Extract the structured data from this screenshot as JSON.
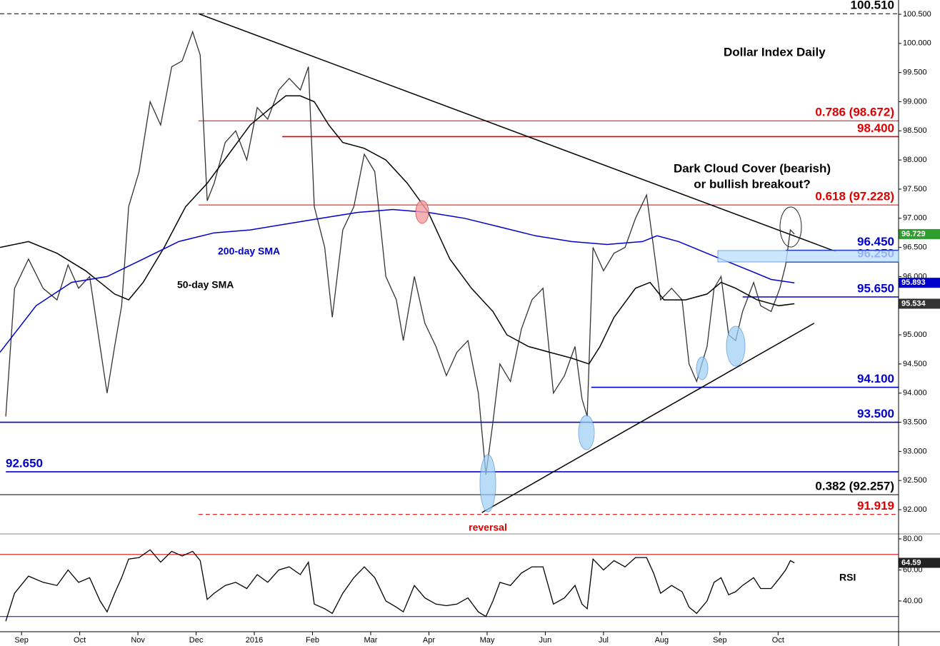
{
  "chart_data": [
    {
      "type": "line",
      "title": "Dollar Index Daily",
      "annotations": [
        "Dark Cloud Cover (bearish)",
        "or bullish breakout?",
        "reversal"
      ],
      "xlim": [
        -0.37,
        15.07
      ],
      "xticks": [
        {
          "value": 0,
          "label": "Sep"
        },
        {
          "value": 1,
          "label": "Oct"
        },
        {
          "value": 2,
          "label": "Nov"
        },
        {
          "value": 3,
          "label": "Dec"
        },
        {
          "value": 4,
          "label": "2016"
        },
        {
          "value": 5,
          "label": "Feb"
        },
        {
          "value": 6,
          "label": "Mar"
        },
        {
          "value": 7,
          "label": "Apr"
        },
        {
          "value": 8,
          "label": "May"
        },
        {
          "value": 9,
          "label": "Jun"
        },
        {
          "value": 10,
          "label": "Jul"
        },
        {
          "value": 11,
          "label": "Aug"
        },
        {
          "value": 12,
          "label": "Sep"
        },
        {
          "value": 13,
          "label": "Oct"
        }
      ],
      "ylim": [
        91.584,
        100.745
      ],
      "yticks": [
        {
          "value": 92,
          "label": "92.000"
        },
        {
          "value": 92.5,
          "label": "92.500"
        },
        {
          "value": 93,
          "label": "93.000"
        },
        {
          "value": 93.5,
          "label": "93.500"
        },
        {
          "value": 94,
          "label": "94.000"
        },
        {
          "value": 94.5,
          "label": "94.500"
        },
        {
          "value": 95,
          "label": "95.000"
        },
        {
          "value": 95.5,
          "label": "95.500"
        },
        {
          "value": 96,
          "label": "96.000"
        },
        {
          "value": 96.5,
          "label": "96.500"
        },
        {
          "value": 97,
          "label": "97.000"
        },
        {
          "value": 97.5,
          "label": "97.500"
        },
        {
          "value": 98,
          "label": "98.000"
        },
        {
          "value": 98.5,
          "label": "98.500"
        },
        {
          "value": 99,
          "label": "99.000"
        },
        {
          "value": 99.5,
          "label": "99.500"
        },
        {
          "value": 100,
          "label": "100.000"
        },
        {
          "value": 100.5,
          "label": "100.500"
        }
      ],
      "series": [
        {
          "color": "#333333",
          "x": [
            -0.27,
            -0.12,
            0.12,
            0.37,
            0.61,
            0.8,
            0.98,
            1.17,
            1.35,
            1.47,
            1.6,
            1.72,
            1.84,
            2.02,
            2.21,
            2.39,
            2.58,
            2.76,
            2.94,
            3.07,
            3.19,
            3.31,
            3.5,
            3.68,
            3.87,
            4.05,
            4.23,
            4.42,
            4.6,
            4.79,
            4.93,
            5.03,
            5.21,
            5.34,
            5.52,
            5.71,
            5.89,
            6.07,
            6.26,
            6.44,
            6.56,
            6.75,
            6.93,
            7.12,
            7.3,
            7.48,
            7.67,
            7.85,
            7.98,
            8.1,
            8.22,
            8.4,
            8.59,
            8.77,
            8.96,
            9.14,
            9.33,
            9.51,
            9.63,
            9.72,
            9.82,
            10.0,
            10.18,
            10.37,
            10.55,
            10.74,
            10.86,
            10.98,
            11.17,
            11.35,
            11.47,
            11.6,
            11.78,
            11.9,
            12.02,
            12.15,
            12.27,
            12.39,
            12.58,
            12.7,
            12.88,
            13.03,
            13.13,
            13.21,
            13.28
          ],
          "values": [
            93.6,
            95.8,
            96.3,
            95.8,
            95.6,
            96.2,
            95.8,
            96.0,
            94.8,
            94.0,
            94.8,
            95.5,
            97.2,
            97.8,
            99.0,
            98.6,
            99.6,
            99.7,
            100.2,
            99.8,
            97.3,
            97.6,
            98.3,
            98.5,
            98.0,
            98.9,
            98.7,
            99.2,
            99.4,
            99.2,
            99.6,
            97.2,
            96.5,
            95.3,
            96.8,
            97.2,
            98.1,
            97.8,
            96.0,
            95.6,
            94.9,
            96.0,
            95.2,
            94.8,
            94.3,
            94.7,
            94.9,
            94.0,
            92.6,
            93.5,
            94.5,
            94.2,
            95.1,
            95.6,
            95.8,
            94.0,
            94.3,
            94.8,
            93.9,
            93.6,
            96.5,
            96.1,
            96.4,
            96.5,
            97.0,
            97.4,
            96.5,
            95.6,
            95.8,
            95.6,
            94.5,
            94.2,
            94.8,
            95.8,
            96.0,
            95.0,
            94.9,
            95.4,
            95.9,
            95.5,
            95.4,
            95.8,
            96.2,
            96.8,
            96.729
          ]
        },
        {
          "name": "50-day SMA",
          "color": "#000000",
          "x": [
            -0.37,
            0.12,
            0.61,
            1.1,
            1.6,
            1.84,
            2.09,
            2.45,
            2.82,
            3.19,
            3.56,
            3.93,
            4.29,
            4.54,
            4.79,
            5.03,
            5.28,
            5.52,
            5.89,
            6.26,
            6.63,
            6.99,
            7.36,
            7.73,
            8.1,
            8.34,
            8.71,
            9.08,
            9.45,
            9.75,
            9.94,
            10.18,
            10.55,
            10.8,
            11.04,
            11.41,
            11.78,
            12.02,
            12.27,
            12.64,
            13.01,
            13.28
          ],
          "values": [
            96.5,
            96.6,
            96.4,
            96.1,
            95.7,
            95.6,
            95.9,
            96.5,
            97.2,
            97.6,
            98.1,
            98.6,
            98.9,
            99.1,
            99.1,
            99.0,
            98.6,
            98.3,
            98.2,
            98.0,
            97.6,
            97.1,
            96.3,
            95.8,
            95.4,
            95.0,
            94.8,
            94.7,
            94.6,
            94.5,
            94.8,
            95.3,
            95.8,
            95.9,
            95.6,
            95.6,
            95.7,
            95.9,
            95.8,
            95.6,
            95.5,
            95.534
          ]
        },
        {
          "name": "200-day SMA",
          "color": "#0000cc",
          "x": [
            -0.37,
            0.25,
            0.86,
            1.47,
            2.09,
            2.7,
            3.31,
            3.93,
            4.54,
            5.15,
            5.77,
            6.38,
            6.99,
            7.61,
            8.22,
            8.83,
            9.45,
            10.06,
            10.67,
            10.92,
            11.29,
            11.9,
            12.52,
            12.88,
            13.28
          ],
          "values": [
            94.7,
            95.5,
            95.9,
            96.0,
            96.3,
            96.6,
            96.75,
            96.8,
            96.9,
            97.0,
            97.1,
            97.15,
            97.1,
            97.0,
            96.85,
            96.7,
            96.6,
            96.55,
            96.6,
            96.7,
            96.6,
            96.35,
            96.1,
            95.95,
            95.893
          ]
        }
      ],
      "levels": [
        {
          "value": 100.51,
          "label": "100.510",
          "color": "#000000",
          "from": -0.37,
          "dashed": true
        },
        {
          "value": 98.672,
          "label": "0.786 (98.672)",
          "color": "#e00000",
          "from": 3.04
        },
        {
          "value": 98.4,
          "label": "98.400",
          "color": "#e00000",
          "from": 4.48
        },
        {
          "value": 97.228,
          "label": "0.618 (97.228)",
          "color": "#e00000",
          "from": 3.04
        },
        {
          "value": 96.45,
          "label": "96.450",
          "color": "#0000cc",
          "from": 13.13
        },
        {
          "value": 96.25,
          "label": "96.250",
          "color": "#0000cc",
          "from": 13.13
        },
        {
          "value": 95.65,
          "label": "95.650",
          "color": "#0000cc",
          "from": 12.39
        },
        {
          "value": 94.1,
          "label": "94.100",
          "color": "#0000cc",
          "from": 9.79
        },
        {
          "value": 93.5,
          "label": "93.500",
          "color": "#0000cc",
          "from": -0.37
        },
        {
          "value": 92.65,
          "label": "92.650",
          "color": "#0000cc",
          "from": -0.27
        },
        {
          "value": 92.257,
          "label": "0.382 (92.257)",
          "color": "#000000",
          "from": -0.37
        },
        {
          "value": 91.919,
          "label": "91.919",
          "color": "#e00000",
          "from": 3.04,
          "dashed": true
        }
      ],
      "trendlines": [
        {
          "x": [
            3.04,
            13.99
          ],
          "values": [
            100.51,
            96.43
          ]
        },
        {
          "x": [
            7.91,
            13.62
          ],
          "values": [
            91.95,
            95.2
          ]
        }
      ],
      "last_values": [
        {
          "value": 96.729,
          "color": "#2e9e2e"
        },
        {
          "value": 95.893,
          "color": "#0000cc"
        },
        {
          "value": 95.534,
          "color": "#333333"
        }
      ]
    },
    {
      "type": "line",
      "title": "RSI",
      "xlim": [
        -0.37,
        15.07
      ],
      "ylim": [
        20.2,
        83.2
      ],
      "yticks": [
        {
          "value": 40,
          "label": "40.00"
        },
        {
          "value": 60,
          "label": "60.00"
        },
        {
          "value": 80,
          "label": "80.00"
        }
      ],
      "series": [
        {
          "color": "#000000",
          "x": [
            -0.27,
            -0.12,
            0.12,
            0.37,
            0.61,
            0.8,
            0.98,
            1.17,
            1.35,
            1.47,
            1.6,
            1.72,
            1.84,
            2.02,
            2.21,
            2.39,
            2.58,
            2.76,
            2.94,
            3.07,
            3.19,
            3.31,
            3.5,
            3.68,
            3.87,
            4.05,
            4.23,
            4.42,
            4.6,
            4.79,
            4.93,
            5.03,
            5.21,
            5.34,
            5.52,
            5.71,
            5.89,
            6.07,
            6.26,
            6.44,
            6.56,
            6.75,
            6.93,
            7.12,
            7.3,
            7.48,
            7.67,
            7.85,
            7.98,
            8.1,
            8.22,
            8.4,
            8.59,
            8.77,
            8.96,
            9.14,
            9.33,
            9.51,
            9.63,
            9.72,
            9.82,
            10.0,
            10.18,
            10.37,
            10.55,
            10.74,
            10.86,
            10.98,
            11.17,
            11.35,
            11.47,
            11.6,
            11.78,
            11.9,
            12.02,
            12.15,
            12.27,
            12.39,
            12.58,
            12.7,
            12.88,
            13.03,
            13.13,
            13.21,
            13.28
          ],
          "values": [
            27,
            45,
            56,
            52,
            50,
            60,
            52,
            55,
            40,
            33,
            45,
            55,
            67,
            68,
            73,
            65,
            72,
            69,
            72,
            66,
            41,
            45,
            50,
            52,
            48,
            57,
            52,
            60,
            62,
            57,
            65,
            38,
            35,
            32,
            45,
            55,
            62,
            55,
            40,
            36,
            33,
            50,
            42,
            38,
            37,
            38,
            42,
            33,
            30,
            40,
            52,
            50,
            58,
            62,
            62,
            38,
            42,
            50,
            38,
            35,
            67,
            60,
            66,
            62,
            68,
            68,
            58,
            45,
            50,
            46,
            36,
            32,
            40,
            52,
            55,
            44,
            46,
            50,
            55,
            48,
            48,
            55,
            60,
            66,
            64.59
          ]
        }
      ],
      "levels": [
        {
          "value": 70,
          "color": "#e00000"
        },
        {
          "value": 30,
          "color": "#0000cc"
        }
      ],
      "last_values": [
        {
          "value": 64.59,
          "color": "#222222"
        }
      ]
    }
  ]
}
